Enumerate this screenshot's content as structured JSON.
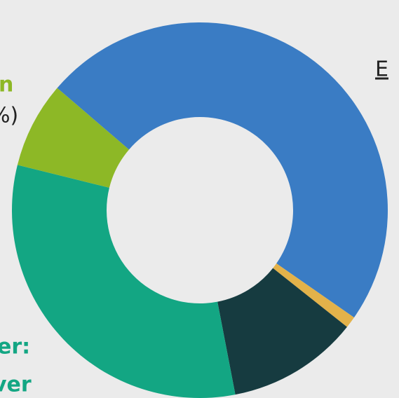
{
  "chart_data": {
    "type": "donut",
    "categories": [
      null,
      null,
      null,
      null,
      null
    ],
    "values": [
      48.4,
      1,
      11.3,
      31.9,
      7.4
    ],
    "colors": [
      "#3a7cc4",
      "#e3b24a",
      "#163b40",
      "#13a683",
      "#8db826"
    ],
    "annotations": [
      "n",
      "%)",
      "E",
      "er:",
      "ver"
    ]
  }
}
